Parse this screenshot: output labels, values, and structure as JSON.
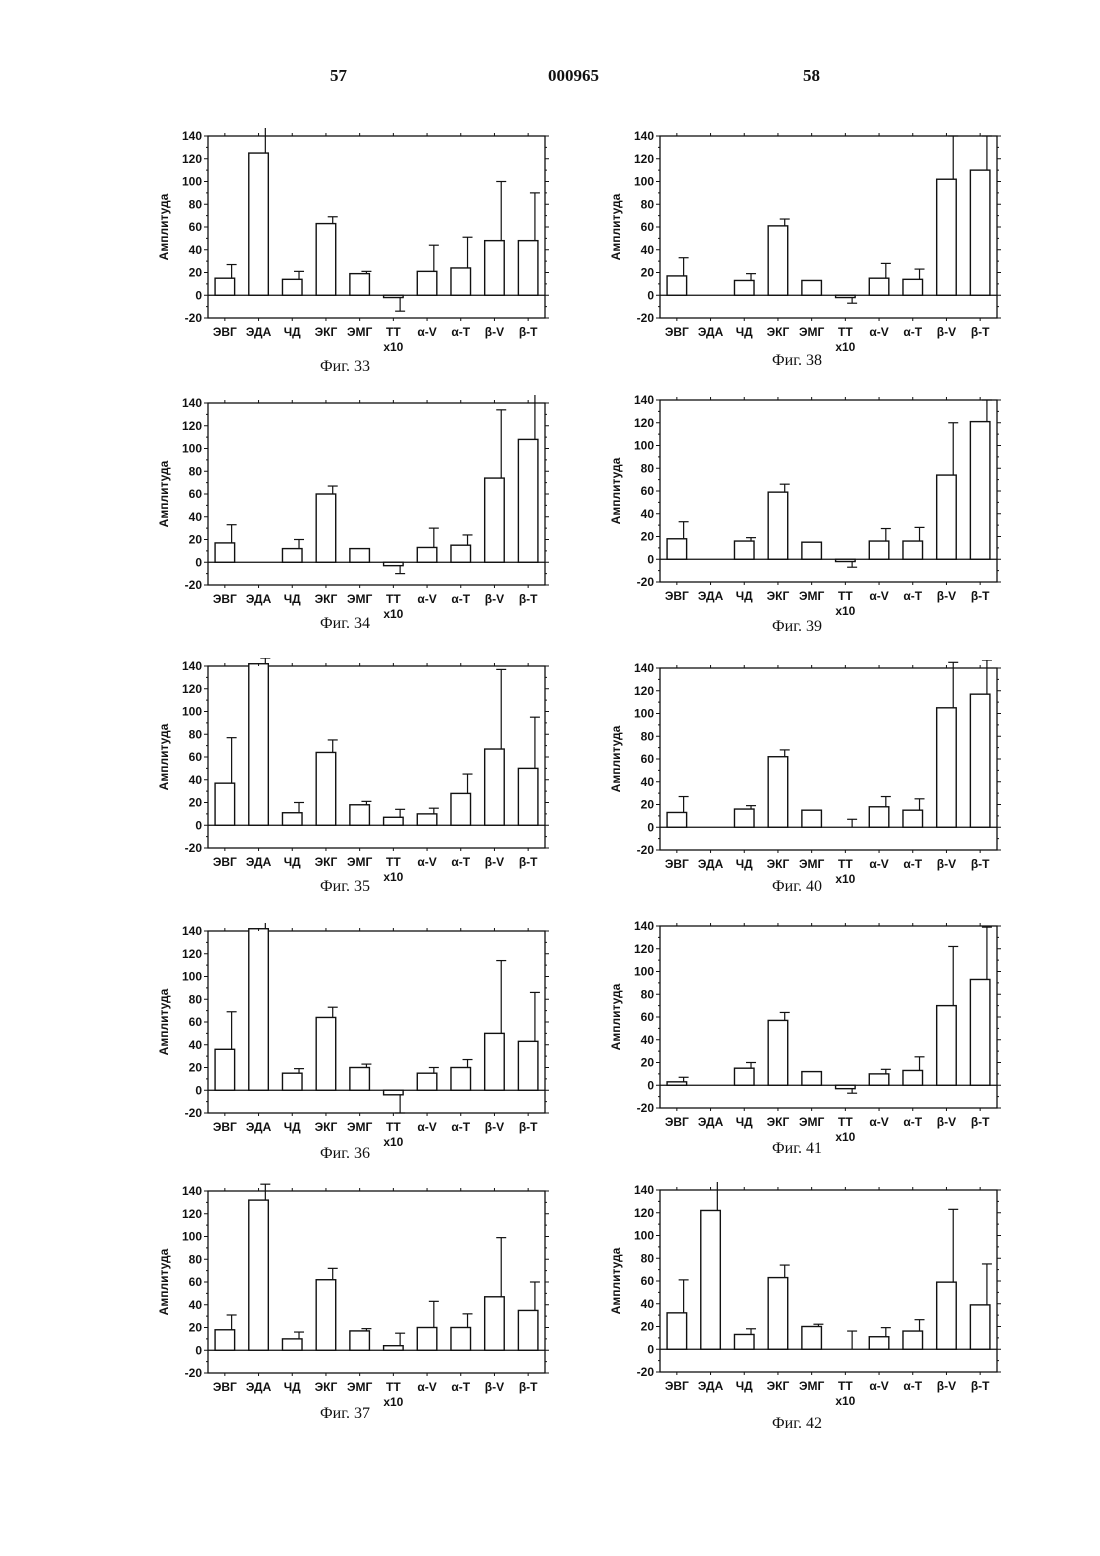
{
  "header": {
    "left_page": "57",
    "doc_number": "000965",
    "right_page": "58"
  },
  "charts_common": {
    "ylabel": "Амплитуда",
    "categories": [
      "ЭВГ",
      "ЭДА",
      "ЧД",
      "ЭКГ",
      "ЭМГ",
      "ТТ",
      "α-V",
      "α-T",
      "β-V",
      "β-T"
    ],
    "sublabel": "x10",
    "yticks": [
      140,
      120,
      100,
      80,
      60,
      40,
      20,
      0,
      -20
    ]
  },
  "chart_data": [
    {
      "type": "bar",
      "caption": "Фиг. 33",
      "ylim": [
        -20,
        140
      ],
      "ylabel": "Амплитуда",
      "categories": [
        "ЭВГ",
        "ЭДА",
        "ЧД",
        "ЭКГ",
        "ЭМГ",
        "ТТ",
        "α-V",
        "α-T",
        "β-V",
        "β-T"
      ],
      "values": [
        15,
        125,
        14,
        63,
        19,
        -2,
        21,
        24,
        48,
        48
      ],
      "errors": [
        12,
        23,
        7,
        6,
        2,
        12,
        23,
        27,
        52,
        42
      ]
    },
    {
      "type": "bar",
      "caption": "Фиг. 34",
      "ylim": [
        -20,
        140
      ],
      "ylabel": "Амплитуда",
      "categories": [
        "ЭВГ",
        "ЭДА",
        "ЧД",
        "ЭКГ",
        "ЭМГ",
        "ТТ",
        "α-V",
        "α-T",
        "β-V",
        "β-T"
      ],
      "values": [
        17,
        0,
        12,
        60,
        12,
        -3,
        13,
        15,
        74,
        108
      ],
      "errors": [
        16,
        0,
        8,
        7,
        0,
        7,
        17,
        9,
        60,
        45
      ]
    },
    {
      "type": "bar",
      "caption": "Фиг. 35",
      "ylim": [
        -20,
        140
      ],
      "ylabel": "Амплитуда",
      "categories": [
        "ЭВГ",
        "ЭДА",
        "ЧД",
        "ЭКГ",
        "ЭМГ",
        "ТТ",
        "α-V",
        "α-T",
        "β-V",
        "β-T"
      ],
      "values": [
        37,
        142,
        11,
        64,
        18,
        7,
        10,
        28,
        67,
        50
      ],
      "errors": [
        40,
        5,
        9,
        11,
        3,
        7,
        5,
        17,
        70,
        45
      ]
    },
    {
      "type": "bar",
      "caption": "Фиг. 36",
      "ylim": [
        -20,
        140
      ],
      "ylabel": "Амплитуда",
      "categories": [
        "ЭВГ",
        "ЭДА",
        "ЧД",
        "ЭКГ",
        "ЭМГ",
        "ТТ",
        "α-V",
        "α-T",
        "β-V",
        "β-T"
      ],
      "values": [
        36,
        142,
        15,
        64,
        20,
        -4,
        15,
        20,
        50,
        43
      ],
      "errors": [
        33,
        6,
        4,
        9,
        3,
        16,
        5,
        7,
        64,
        43
      ]
    },
    {
      "type": "bar",
      "caption": "Фиг. 37",
      "ylim": [
        -20,
        140
      ],
      "ylabel": "Амплитуда",
      "categories": [
        "ЭВГ",
        "ЭДА",
        "ЧД",
        "ЭКГ",
        "ЭМГ",
        "ТТ",
        "α-V",
        "α-T",
        "β-V",
        "β-T"
      ],
      "values": [
        18,
        132,
        10,
        62,
        17,
        4,
        20,
        20,
        47,
        35
      ],
      "errors": [
        13,
        14,
        6,
        10,
        2,
        11,
        23,
        12,
        52,
        25
      ]
    },
    {
      "type": "bar",
      "caption": "Фиг. 38",
      "ylim": [
        -20,
        140
      ],
      "ylabel": "Амплитуда",
      "categories": [
        "ЭВГ",
        "ЭДА",
        "ЧД",
        "ЭКГ",
        "ЭМГ",
        "ТТ",
        "α-V",
        "α-T",
        "β-V",
        "β-T"
      ],
      "values": [
        17,
        0,
        13,
        61,
        13,
        -2,
        15,
        14,
        102,
        110
      ],
      "errors": [
        16,
        0,
        6,
        6,
        0,
        5,
        13,
        9,
        38,
        30
      ]
    },
    {
      "type": "bar",
      "caption": "Фиг. 39",
      "ylim": [
        -20,
        140
      ],
      "ylabel": "Амплитуда",
      "categories": [
        "ЭВГ",
        "ЭДА",
        "ЧД",
        "ЭКГ",
        "ЭМГ",
        "ТТ",
        "α-V",
        "α-T",
        "β-V",
        "β-T"
      ],
      "values": [
        18,
        0,
        16,
        59,
        15,
        -2,
        16,
        16,
        74,
        121
      ],
      "errors": [
        15,
        0,
        3,
        7,
        0,
        5,
        11,
        12,
        46,
        19
      ]
    },
    {
      "type": "bar",
      "caption": "Фиг. 40",
      "ylim": [
        -20,
        140
      ],
      "ylabel": "Амплитуда",
      "categories": [
        "ЭВГ",
        "ЭДА",
        "ЧД",
        "ЭКГ",
        "ЭМГ",
        "ТТ",
        "α-V",
        "α-T",
        "β-V",
        "β-T"
      ],
      "values": [
        13,
        0,
        16,
        62,
        15,
        0,
        18,
        15,
        105,
        117
      ],
      "errors": [
        14,
        0,
        3,
        6,
        0,
        7,
        9,
        10,
        40,
        30
      ]
    },
    {
      "type": "bar",
      "caption": "Фиг. 41",
      "ylim": [
        -20,
        140
      ],
      "ylabel": "Амплитуда",
      "categories": [
        "ЭВГ",
        "ЭДА",
        "ЧД",
        "ЭКГ",
        "ЭМГ",
        "ТТ",
        "α-V",
        "α-T",
        "β-V",
        "β-T"
      ],
      "values": [
        3,
        0,
        15,
        57,
        12,
        -3,
        10,
        13,
        70,
        93
      ],
      "errors": [
        4,
        0,
        5,
        7,
        0,
        4,
        4,
        12,
        52,
        46
      ]
    },
    {
      "type": "bar",
      "caption": "Фиг. 42",
      "ylim": [
        -20,
        140
      ],
      "ylabel": "Амплитуда",
      "categories": [
        "ЭВГ",
        "ЭДА",
        "ЧД",
        "ЭКГ",
        "ЭМГ",
        "ТТ",
        "α-V",
        "α-T",
        "β-V",
        "β-T"
      ],
      "values": [
        32,
        122,
        13,
        63,
        20,
        0,
        11,
        16,
        59,
        39
      ],
      "errors": [
        29,
        28,
        5,
        11,
        2,
        16,
        8,
        10,
        64,
        36
      ]
    }
  ]
}
